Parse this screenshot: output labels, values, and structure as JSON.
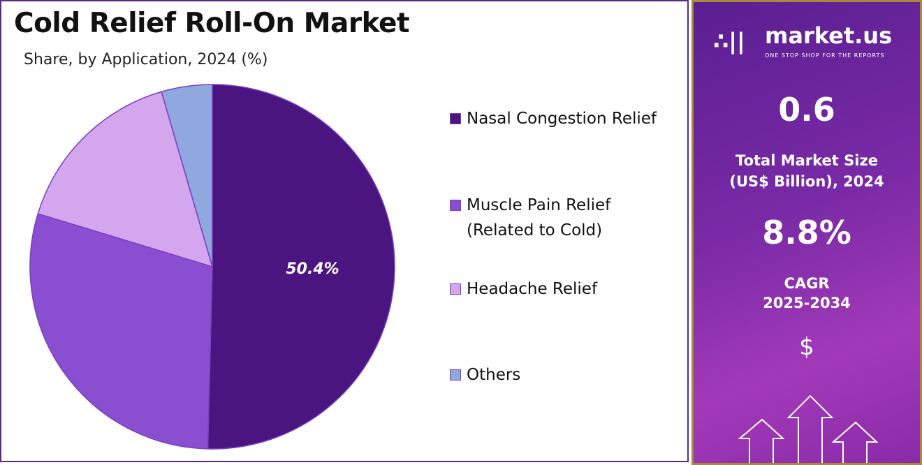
{
  "chart_data": {
    "type": "pie",
    "title": "Cold Relief Roll-On Market",
    "subtitle": "Share, by Application, 2024 (%)",
    "categories": [
      "Nasal Congestion Relief",
      "Muscle Pain Relief (Related to Cold)",
      "Headache Relief",
      "Others"
    ],
    "legend_lines": [
      [
        "Nasal Congestion Relief"
      ],
      [
        "Muscle Pain Relief",
        "(Related to Cold)"
      ],
      [
        "Headache Relief"
      ],
      [
        "Others"
      ]
    ],
    "values": [
      50.4,
      29.3,
      15.8,
      4.5
    ],
    "colors": [
      "#4b1580",
      "#8a4fd0",
      "#d3a6ee",
      "#8fa8de"
    ],
    "data_labels": [
      "50.4%",
      "",
      "",
      ""
    ],
    "legend_position": "right"
  },
  "side_panel": {
    "brand": "market.us",
    "tagline": "ONE STOP SHOP FOR THE REPORTS",
    "market_size_value": "0.6",
    "market_size_label_1": "Total Market Size",
    "market_size_label_2": "(US$ Billion), 2024",
    "cagr_value": "8.8%",
    "cagr_label_1": "CAGR",
    "cagr_label_2": "2025-2034",
    "currency_symbol": "$"
  }
}
